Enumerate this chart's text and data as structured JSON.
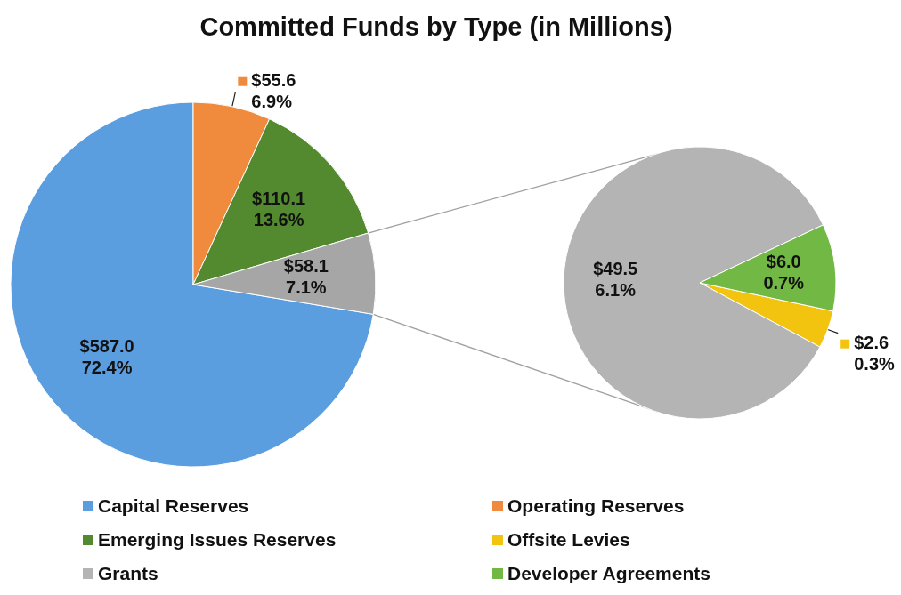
{
  "chart_data": [
    {
      "type": "pie",
      "title": "Committed Funds by Type (in Millions)",
      "legend": "bottom",
      "categories": [
        "Capital Reserves",
        "Operating Reserves",
        "Emerging Issues Reserves",
        null
      ],
      "values": [
        587.0,
        55.6,
        110.1,
        58.1
      ],
      "colors": [
        "#5b9ee0",
        "#f08a3c",
        "#53892f",
        "#a6a6a6"
      ],
      "value_labels": [
        "$587.0\n72.4%",
        "$55.6\n6.9%",
        "$110.1\n13.6%",
        "$58.1\n7.1%"
      ]
    },
    {
      "type": "pie",
      "legend": "bottom",
      "categories": [
        "Offsite Levies",
        "Grants",
        "Developer Agreements"
      ],
      "values": [
        2.6,
        49.5,
        6.0
      ],
      "colors": [
        "#f2c40f",
        "#b4b4b4",
        "#72b844"
      ],
      "value_labels": [
        "$2.6\n0.3%",
        "$49.5\n6.1%",
        "$6.0\n0.7%"
      ]
    }
  ]
}
